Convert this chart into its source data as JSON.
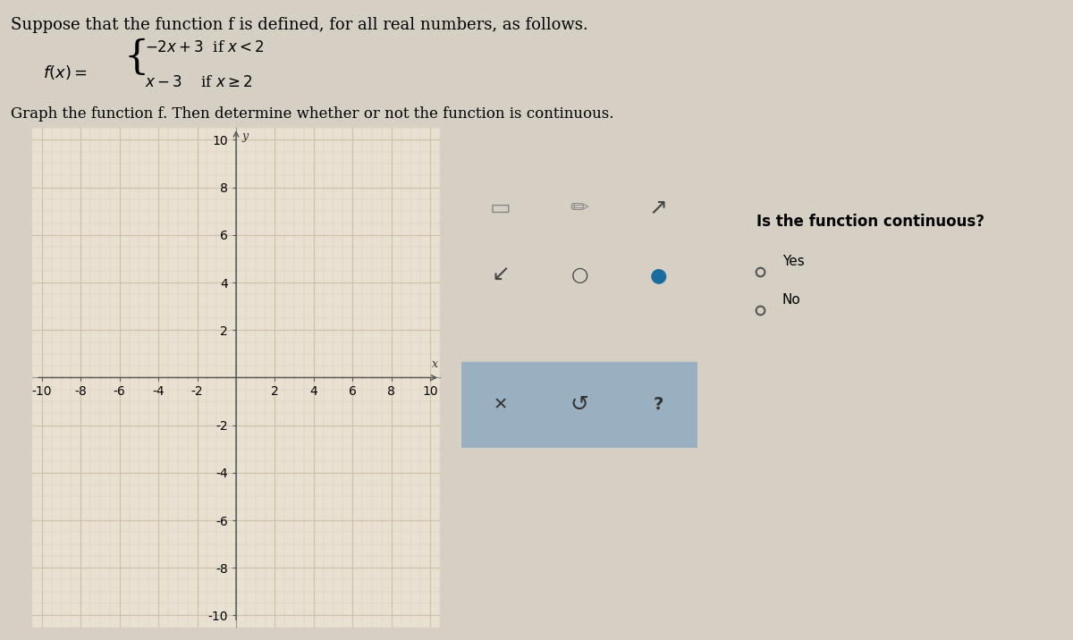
{
  "title_text": "Suppose that the function f is defined, for all real numbers, as follows.",
  "formula_line1": "-2x + 3  if x < 2",
  "formula_line2": "x - 3    if x ≥ 2",
  "graph_instruction": "Graph the function f. Then determine whether or not the function is continuous.",
  "continuous_question": "Is the function continuous?",
  "option_yes": "Yes",
  "option_no": "No",
  "xlim": [
    -10,
    10
  ],
  "ylim": [
    -10,
    10
  ],
  "xticks": [
    -10,
    -8,
    -6,
    -4,
    -2,
    0,
    2,
    4,
    6,
    8,
    10
  ],
  "yticks": [
    -10,
    -8,
    -6,
    -4,
    -2,
    0,
    2,
    4,
    6,
    8,
    10
  ],
  "bg_color": "#d6cfc4",
  "graph_bg": "#e8e0d0",
  "graph_border": "#999999",
  "grid_color": "#c8b8a0",
  "axis_color": "#555555",
  "tick_label_color": "#555555",
  "tick_fontsize": 7,
  "answer_box_color": "#ffffff",
  "toolbar_bg": "#c8c8c8"
}
